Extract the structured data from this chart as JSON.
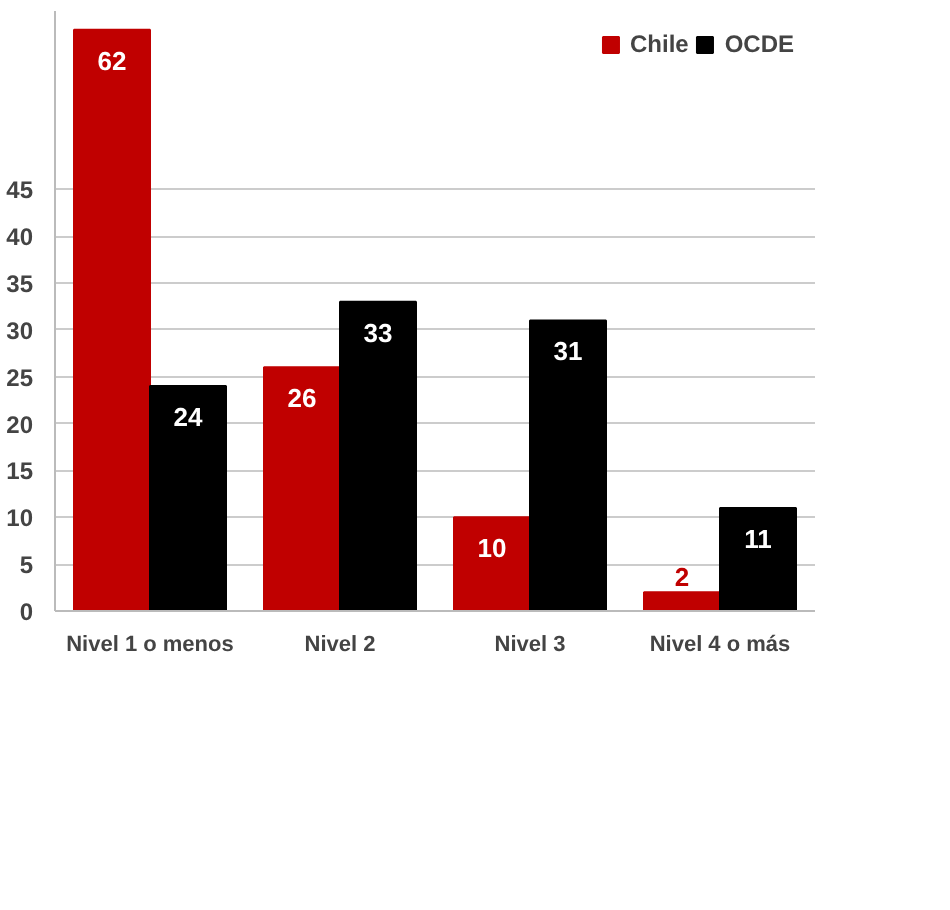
{
  "chart_data": {
    "type": "bar",
    "categories": [
      "Nivel 1 o menos",
      "Nivel 2",
      "Nivel 3",
      "Nivel 4 o más"
    ],
    "series": [
      {
        "name": "Chile",
        "color": "#c00000",
        "values": [
          62,
          26,
          10,
          2
        ]
      },
      {
        "name": "OCDE",
        "color": "#000000",
        "values": [
          24,
          33,
          31,
          11
        ]
      }
    ],
    "data_labels": true,
    "ylim": [
      0,
      64
    ],
    "yticks": [
      0,
      5,
      10,
      15,
      20,
      25,
      30,
      35,
      40,
      45
    ],
    "grid": "y",
    "legend": "top right"
  }
}
